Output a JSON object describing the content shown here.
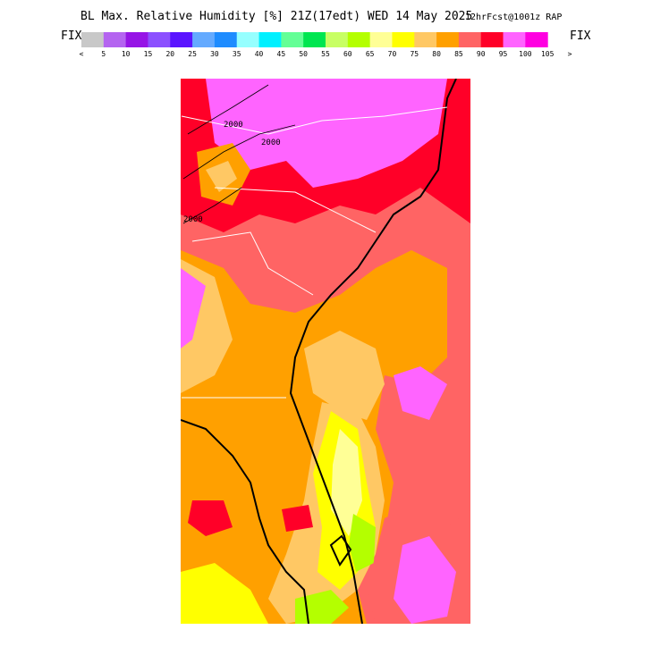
{
  "header": {
    "title": "BL Max. Relative Humidity [%] 21Z(17edt) WED 14 May 2025",
    "subtitle": "12hrFcst@1001z RAP",
    "fix_left": "FIX",
    "fix_right": "FIX"
  },
  "colorbar": {
    "colors": [
      "#c8c8c8",
      "#b464f0",
      "#9614e6",
      "#8c50ff",
      "#5a14ff",
      "#64aaff",
      "#1e8cff",
      "#96ffff",
      "#00f0ff",
      "#64ff96",
      "#00e650",
      "#c8ff64",
      "#b4ff00",
      "#ffff96",
      "#ffff00",
      "#ffc864",
      "#ffa000",
      "#ff6464",
      "#ff0028",
      "#ff64ff",
      "#ff00e1"
    ],
    "labels": [
      "<",
      "5",
      "10",
      "15",
      "20",
      "25",
      "30",
      "35",
      "40",
      "45",
      "50",
      "55",
      "60",
      "65",
      "70",
      "75",
      "80",
      "85",
      "90",
      "95",
      "100",
      "105",
      ">"
    ]
  },
  "map": {
    "contour_labels": [
      "2000",
      "2000",
      "2000"
    ]
  }
}
